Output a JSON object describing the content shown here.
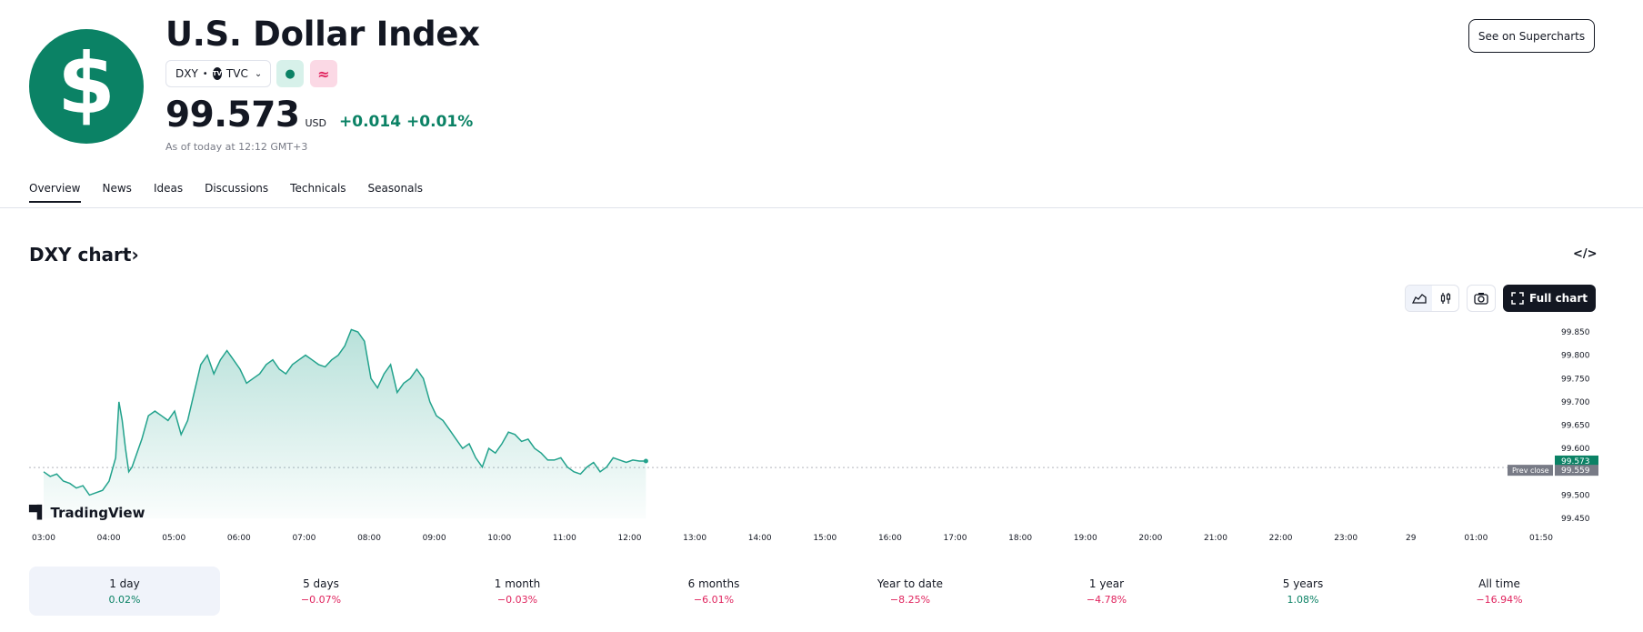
{
  "header": {
    "logo_glyph": "$",
    "title": "U.S. Dollar Index",
    "ticker": "DXY",
    "exchange": "TVC",
    "exchange_logo": "TV",
    "price": "99.573",
    "currency": "USD",
    "change_abs": "+0.014",
    "change_pct": "+0.01%",
    "as_of": "As of today at 12:12 GMT+3",
    "supercharts_label": "See on Supercharts",
    "status_icons": [
      "market-open-dot-icon",
      "delayed-data-icon"
    ]
  },
  "tabs": [
    {
      "label": "Overview",
      "active": true
    },
    {
      "label": "News",
      "active": false
    },
    {
      "label": "Ideas",
      "active": false
    },
    {
      "label": "Discussions",
      "active": false
    },
    {
      "label": "Technicals",
      "active": false
    },
    {
      "label": "Seasonals",
      "active": false
    }
  ],
  "chart_section": {
    "title": "DXY chart",
    "title_suffix": "›",
    "embed_icon": "</>",
    "full_chart_label": "Full chart",
    "brand": "TradingView"
  },
  "colors": {
    "accent": "#0b8265",
    "line": "#22a28c",
    "negative": "#e0245e",
    "prev_close_bg": "#787b86"
  },
  "chart_data": {
    "type": "area",
    "x_ticks": [
      "03:00",
      "04:00",
      "05:00",
      "06:00",
      "07:00",
      "08:00",
      "09:00",
      "10:00",
      "11:00",
      "12:00",
      "13:00",
      "14:00",
      "15:00",
      "16:00",
      "17:00",
      "18:00",
      "19:00",
      "20:00",
      "21:00",
      "22:00",
      "23:00",
      "29",
      "01:00",
      "01:50"
    ],
    "y_ticks": [
      "99.850",
      "99.800",
      "99.750",
      "99.700",
      "99.650",
      "99.600",
      "99.550",
      "99.500",
      "99.450"
    ],
    "ylim": [
      99.45,
      99.85
    ],
    "current_value": "99.573",
    "prev_close_label": "Prev close",
    "prev_close_value": "99.559",
    "series": [
      {
        "x": [
          3.0,
          3.1,
          3.2,
          3.3,
          3.4,
          3.5,
          3.6,
          3.7,
          3.8,
          3.9,
          4.0,
          4.1,
          4.15,
          4.2,
          4.25,
          4.3,
          4.35,
          4.4,
          4.45,
          4.5,
          4.6,
          4.7,
          4.8,
          4.9,
          5.0,
          5.1,
          5.2,
          5.3,
          5.4,
          5.5,
          5.6,
          5.7,
          5.8,
          5.9,
          6.0,
          6.1,
          6.2,
          6.3,
          6.4,
          6.5,
          6.6,
          6.7,
          6.8,
          6.9,
          7.0,
          7.1,
          7.2,
          7.3,
          7.4,
          7.5,
          7.6,
          7.7,
          7.8,
          7.9,
          8.0,
          8.1,
          8.2,
          8.3,
          8.4,
          8.5,
          8.6,
          8.7,
          8.8,
          8.9,
          9.0,
          9.1,
          9.2,
          9.3,
          9.4,
          9.5,
          9.6,
          9.7,
          9.8,
          9.9,
          10.0,
          10.1,
          10.2,
          10.3,
          10.4,
          10.5,
          10.6,
          10.7,
          10.8,
          10.9,
          11.0,
          11.1,
          11.2,
          11.3,
          11.4,
          11.5,
          11.6,
          11.7,
          11.8,
          11.9,
          12.0,
          12.1,
          12.2
        ],
        "y": [
          99.55,
          99.54,
          99.545,
          99.53,
          99.525,
          99.515,
          99.52,
          99.5,
          99.505,
          99.51,
          99.53,
          99.58,
          99.7,
          99.66,
          99.6,
          99.55,
          99.56,
          99.58,
          99.6,
          99.62,
          99.67,
          99.68,
          99.67,
          99.66,
          99.68,
          99.63,
          99.66,
          99.72,
          99.78,
          99.8,
          99.76,
          99.79,
          99.81,
          99.79,
          99.77,
          99.74,
          99.75,
          99.76,
          99.78,
          99.79,
          99.77,
          99.76,
          99.78,
          99.79,
          99.8,
          99.79,
          99.78,
          99.775,
          99.79,
          99.8,
          99.82,
          99.855,
          99.85,
          99.83,
          99.75,
          99.73,
          99.76,
          99.78,
          99.72,
          99.74,
          99.75,
          99.77,
          99.75,
          99.7,
          99.67,
          99.66,
          99.64,
          99.62,
          99.6,
          99.61,
          99.58,
          99.56,
          99.6,
          99.59,
          99.61,
          99.635,
          99.63,
          99.615,
          99.62,
          99.6,
          99.59,
          99.575,
          99.575,
          99.58,
          99.56,
          99.55,
          99.545,
          99.56,
          99.57,
          99.55,
          99.56,
          99.58,
          99.575,
          99.57,
          99.575,
          99.573,
          99.573
        ]
      }
    ]
  },
  "periods": [
    {
      "label": "1 day",
      "value": "0.02%",
      "dir": "pos",
      "selected": true
    },
    {
      "label": "5 days",
      "value": "−0.07%",
      "dir": "neg",
      "selected": false
    },
    {
      "label": "1 month",
      "value": "−0.03%",
      "dir": "neg",
      "selected": false
    },
    {
      "label": "6 months",
      "value": "−6.01%",
      "dir": "neg",
      "selected": false
    },
    {
      "label": "Year to date",
      "value": "−8.25%",
      "dir": "neg",
      "selected": false
    },
    {
      "label": "1 year",
      "value": "−4.78%",
      "dir": "neg",
      "selected": false
    },
    {
      "label": "5 years",
      "value": "1.08%",
      "dir": "pos",
      "selected": false
    },
    {
      "label": "All time",
      "value": "−16.94%",
      "dir": "neg",
      "selected": false
    }
  ]
}
